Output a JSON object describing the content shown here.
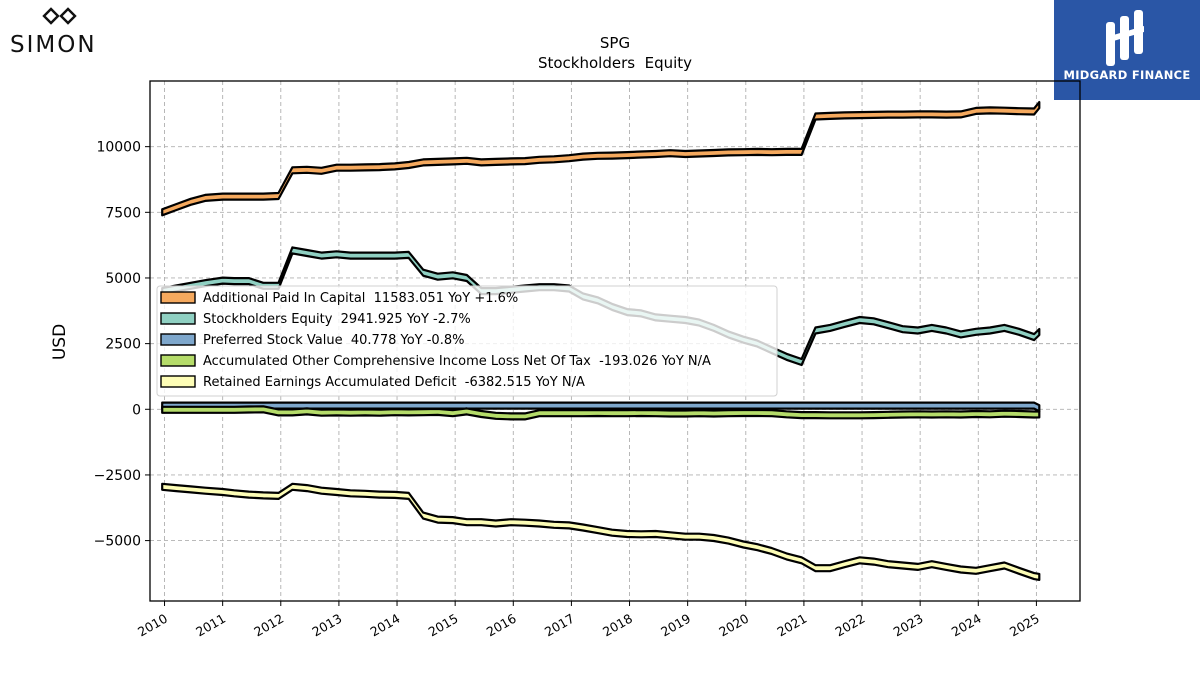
{
  "logos": {
    "left_text": "SIMON",
    "right_text": "MIDGARD FINANCE"
  },
  "chart_data": {
    "type": "area",
    "title": "SPG",
    "subtitle": "Stockholders  Equity",
    "ylabel": "USD",
    "xlabel": "",
    "xlim": [
      2009.75,
      2025.75
    ],
    "ylim": [
      -7300,
      12500
    ],
    "yticks": [
      10000,
      7500,
      5000,
      2500,
      0,
      -2500,
      -5000
    ],
    "ytick_labels": [
      "10000",
      "7500",
      "5000",
      "2500",
      "0",
      "−2500",
      "−5000"
    ],
    "xticks": [
      2010,
      2011,
      2012,
      2013,
      2014,
      2015,
      2016,
      2017,
      2018,
      2019,
      2020,
      2021,
      2022,
      2023,
      2024,
      2025
    ],
    "xtick_labels": [
      "2010",
      "2011",
      "2012",
      "2013",
      "2014",
      "2015",
      "2016",
      "2017",
      "2018",
      "2019",
      "2020",
      "2021",
      "2022",
      "2023",
      "2024",
      "2025"
    ],
    "grid": true,
    "legend_position": "center-left",
    "x": [
      2009.96,
      2010.2,
      2010.45,
      2010.7,
      2011.0,
      2011.2,
      2011.45,
      2011.7,
      2011.96,
      2012.2,
      2012.45,
      2012.7,
      2012.96,
      2013.2,
      2013.45,
      2013.7,
      2013.96,
      2014.2,
      2014.45,
      2014.7,
      2014.96,
      2015.2,
      2015.45,
      2015.7,
      2015.96,
      2016.2,
      2016.45,
      2016.7,
      2016.96,
      2017.2,
      2017.45,
      2017.7,
      2017.96,
      2018.2,
      2018.45,
      2018.7,
      2018.96,
      2019.2,
      2019.45,
      2019.7,
      2019.96,
      2020.2,
      2020.45,
      2020.7,
      2020.96,
      2021.2,
      2021.45,
      2021.7,
      2021.96,
      2022.2,
      2022.45,
      2022.7,
      2022.96,
      2023.2,
      2023.45,
      2023.7,
      2023.96,
      2024.2,
      2024.45,
      2024.7,
      2024.96,
      2025.05
    ],
    "series": [
      {
        "name": "Additional Paid In Capital  11583.051 YoY +1.6%",
        "color": "#f5a95e",
        "values": [
          7500,
          7700,
          7900,
          8050,
          8100,
          8100,
          8100,
          8100,
          8120,
          9100,
          9120,
          9080,
          9200,
          9200,
          9210,
          9220,
          9250,
          9300,
          9400,
          9420,
          9440,
          9460,
          9400,
          9420,
          9440,
          9450,
          9500,
          9520,
          9560,
          9620,
          9650,
          9660,
          9680,
          9700,
          9720,
          9750,
          9720,
          9740,
          9760,
          9780,
          9790,
          9800,
          9790,
          9800,
          9800,
          11150,
          11170,
          11190,
          11200,
          11210,
          11220,
          11220,
          11230,
          11230,
          11220,
          11230,
          11360,
          11380,
          11370,
          11350,
          11340,
          11583
        ]
      },
      {
        "name": "Stockholders Equity  2941.925 YoY -2.7%",
        "color": "#8fd0c2",
        "values": [
          4500,
          4600,
          4700,
          4800,
          4900,
          4880,
          4880,
          4700,
          4700,
          6050,
          5950,
          5850,
          5900,
          5850,
          5850,
          5850,
          5850,
          5880,
          5200,
          5050,
          5100,
          5000,
          4500,
          4500,
          4550,
          4600,
          4650,
          4650,
          4600,
          4300,
          4150,
          3900,
          3700,
          3650,
          3500,
          3450,
          3400,
          3300,
          3100,
          2850,
          2650,
          2500,
          2250,
          2000,
          1800,
          3000,
          3100,
          3250,
          3400,
          3350,
          3200,
          3050,
          3000,
          3100,
          3000,
          2850,
          2950,
          3000,
          3100,
          2950,
          2750,
          2942
        ]
      },
      {
        "name": "Preferred Stock Value  40.778 YoY -0.8%",
        "color": "#7ea7cc",
        "values": [
          140,
          140,
          140,
          140,
          140,
          140,
          140,
          140,
          140,
          140,
          140,
          140,
          140,
          140,
          140,
          140,
          140,
          140,
          140,
          140,
          140,
          140,
          140,
          140,
          140,
          140,
          140,
          140,
          140,
          140,
          140,
          140,
          140,
          140,
          140,
          140,
          140,
          140,
          140,
          140,
          140,
          140,
          140,
          140,
          140,
          140,
          140,
          140,
          140,
          140,
          140,
          140,
          140,
          140,
          140,
          140,
          140,
          140,
          140,
          140,
          140,
          41
        ]
      },
      {
        "name": "Accumulated Other Comprehensive Income Loss Net Of Tax  -193.026 YoY N/A",
        "color": "#b5dc6a",
        "values": [
          -20,
          -20,
          -20,
          -20,
          -20,
          -20,
          -10,
          0,
          -120,
          -120,
          -80,
          -130,
          -120,
          -130,
          -120,
          -130,
          -110,
          -120,
          -110,
          -100,
          -150,
          -80,
          -180,
          -250,
          -270,
          -270,
          -150,
          -150,
          -150,
          -150,
          -140,
          -150,
          -150,
          -140,
          -150,
          -160,
          -160,
          -150,
          -160,
          -150,
          -140,
          -140,
          -150,
          -190,
          -220,
          -220,
          -230,
          -230,
          -230,
          -220,
          -210,
          -200,
          -190,
          -200,
          -190,
          -200,
          -180,
          -190,
          -170,
          -180,
          -200,
          -193
        ]
      },
      {
        "name": "Retained Earnings Accumulated Deficit  -6382.515 YoY N/A",
        "color": "#fdfdb6",
        "values": [
          -2950,
          -3000,
          -3050,
          -3100,
          -3150,
          -3200,
          -3250,
          -3280,
          -3300,
          -2950,
          -3000,
          -3100,
          -3150,
          -3200,
          -3220,
          -3250,
          -3260,
          -3300,
          -4050,
          -4200,
          -4220,
          -4300,
          -4300,
          -4350,
          -4300,
          -4320,
          -4350,
          -4400,
          -4420,
          -4500,
          -4600,
          -4700,
          -4750,
          -4760,
          -4750,
          -4800,
          -4850,
          -4850,
          -4900,
          -5000,
          -5150,
          -5250,
          -5400,
          -5600,
          -5750,
          -6050,
          -6050,
          -5900,
          -5750,
          -5800,
          -5900,
          -5950,
          -6000,
          -5900,
          -6000,
          -6100,
          -6150,
          -6050,
          -5950,
          -6150,
          -6350,
          -6383
        ]
      }
    ]
  }
}
